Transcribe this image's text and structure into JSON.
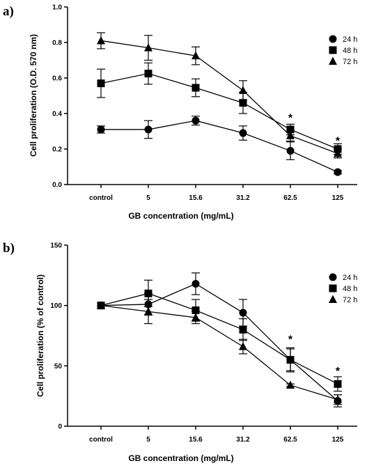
{
  "chart_data": [
    {
      "type": "line",
      "panel_label": "a)",
      "categories": [
        "control",
        "5",
        "15.6",
        "31.2",
        "62.5",
        "125"
      ],
      "xlabel": "GB concentration (mg/mL)",
      "ylabel": "Cell proliferation (O.D. 570 nm)",
      "ylim": [
        0,
        1.0
      ],
      "yticks": [
        0.0,
        0.2,
        0.4,
        0.6,
        0.8,
        1.0
      ],
      "ytick_labels": [
        "0.0",
        "0.2",
        "0.4",
        "0.6",
        "0.8",
        "1.0"
      ],
      "legend_position": "top-right",
      "series": [
        {
          "name": "24 h",
          "marker": "circle",
          "values": [
            0.31,
            0.31,
            0.36,
            0.29,
            0.19,
            0.07
          ],
          "errors": [
            0.02,
            0.05,
            0.025,
            0.04,
            0.05,
            0.01
          ]
        },
        {
          "name": "48 h",
          "marker": "square",
          "values": [
            0.57,
            0.625,
            0.545,
            0.46,
            0.31,
            0.2
          ],
          "errors": [
            0.08,
            0.06,
            0.05,
            0.06,
            0.03,
            0.03
          ]
        },
        {
          "name": "72 h",
          "marker": "triangle",
          "values": [
            0.81,
            0.77,
            0.725,
            0.53,
            0.275,
            0.175
          ],
          "errors": [
            0.045,
            0.07,
            0.05,
            0.055,
            0.03,
            0.025
          ]
        }
      ],
      "annotations": [
        {
          "text": "*",
          "category": "62.5",
          "y": 0.39
        },
        {
          "text": "*",
          "category": "125",
          "y": 0.26
        }
      ]
    },
    {
      "type": "line",
      "panel_label": "b)",
      "categories": [
        "control",
        "5",
        "15.6",
        "31.2",
        "62.5",
        "125"
      ],
      "xlabel": "GB concentration (mg/mL)",
      "ylabel": "Cell proliferation (% of control)",
      "ylim": [
        0,
        150
      ],
      "yticks": [
        0,
        50,
        100,
        150
      ],
      "ytick_labels": [
        "0",
        "50",
        "100",
        "150"
      ],
      "legend_position": "top-right",
      "series": [
        {
          "name": "24 h",
          "marker": "circle",
          "values": [
            100,
            101,
            118,
            94,
            55,
            21
          ],
          "errors": [
            0,
            9,
            9,
            11,
            10,
            5
          ]
        },
        {
          "name": "48 h",
          "marker": "square",
          "values": [
            100,
            110,
            96,
            80,
            55,
            35
          ],
          "errors": [
            0,
            11,
            9,
            9,
            9,
            6
          ]
        },
        {
          "name": "72 h",
          "marker": "triangle",
          "values": [
            100,
            95,
            90,
            66,
            34,
            22
          ],
          "errors": [
            0,
            10,
            5,
            6,
            1,
            4
          ]
        }
      ],
      "annotations": [
        {
          "text": "*",
          "category": "62.5",
          "y": 74
        },
        {
          "text": "*",
          "category": "125",
          "y": 48
        }
      ]
    }
  ]
}
